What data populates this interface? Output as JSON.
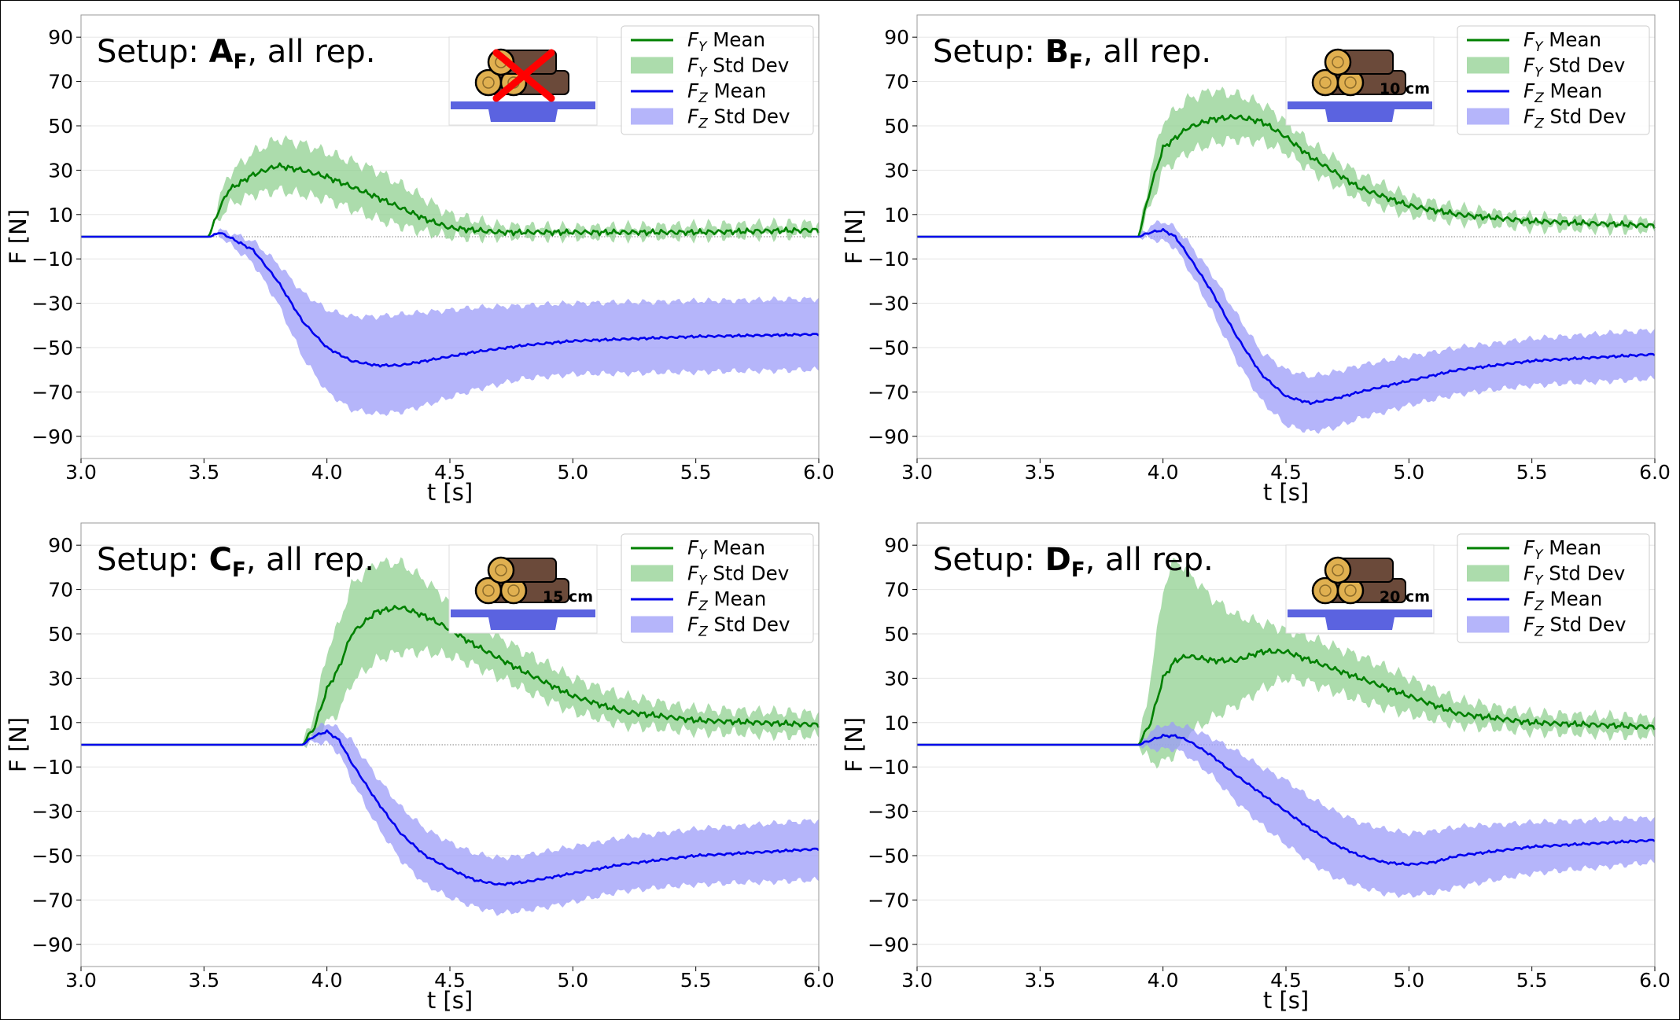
{
  "legend_labels": {
    "fy_mean": [
      "F",
      "Y",
      " Mean"
    ],
    "fy_std": [
      "F",
      "Y",
      " Std Dev"
    ],
    "fz_mean": [
      "F",
      "Z",
      " Mean"
    ],
    "fz_std": [
      "F",
      "Z",
      " Std Dev"
    ]
  },
  "colors": {
    "fy_line": "#008000",
    "fy_band": "#90d090",
    "fz_line": "#0000ee",
    "fz_band": "#9c9cf8",
    "sensor": "#5b63e0",
    "log_dark": "#6b4a3a",
    "log_end": "#e0b050",
    "cross": "#ff0000"
  },
  "chart_data": [
    {
      "type": "line",
      "title": {
        "prefix": "Setup: ",
        "letter": "A",
        "sub": "F",
        "suffix": ", all rep."
      },
      "xlabel": "t [s]",
      "ylabel": "F [N]",
      "xlim": [
        3.0,
        6.0
      ],
      "ylim": [
        -100,
        100
      ],
      "xticks": [
        "3.0",
        "3.5",
        "4.0",
        "4.5",
        "5.0",
        "5.5",
        "6.0"
      ],
      "yticks": [
        "90",
        "70",
        "50",
        "30",
        "10",
        "−10",
        "−30",
        "−50",
        "−70",
        "−90"
      ],
      "grid": "horizontal",
      "legend_position": "top-right",
      "thumbnail": {
        "label": "",
        "crossed": true
      },
      "series": [
        {
          "name": "F_Y Mean",
          "x": [
            3.0,
            3.52,
            3.56,
            3.6,
            3.7,
            3.8,
            3.9,
            4.0,
            4.2,
            4.4,
            4.5,
            4.7,
            5.0,
            5.5,
            6.0
          ],
          "y": [
            0,
            0,
            12,
            21,
            28,
            32,
            30,
            27,
            18,
            8,
            4,
            2,
            2,
            2,
            3
          ]
        },
        {
          "name": "F_Y Std Dev",
          "x": [
            3.0,
            3.52,
            3.56,
            3.6,
            3.7,
            3.8,
            3.9,
            4.0,
            4.2,
            4.4,
            4.5,
            4.7,
            5.0,
            5.5,
            6.0
          ],
          "upper": [
            0,
            0,
            16,
            28,
            38,
            44,
            42,
            38,
            30,
            17,
            10,
            5,
            4,
            5,
            6
          ],
          "lower": [
            0,
            0,
            8,
            14,
            19,
            21,
            19,
            17,
            8,
            2,
            0,
            0,
            0,
            0,
            1
          ]
        },
        {
          "name": "F_Z Mean",
          "x": [
            3.0,
            3.53,
            3.56,
            3.6,
            3.7,
            3.8,
            3.9,
            4.0,
            4.1,
            4.2,
            4.3,
            4.4,
            4.6,
            4.8,
            5.0,
            5.5,
            6.0
          ],
          "y": [
            0,
            0,
            2,
            0,
            -6,
            -20,
            -38,
            -50,
            -56,
            -58,
            -58,
            -56,
            -52,
            -49,
            -47,
            -45,
            -44
          ]
        },
        {
          "name": "F_Z Std Dev",
          "x": [
            3.0,
            3.53,
            3.56,
            3.6,
            3.7,
            3.8,
            3.9,
            4.0,
            4.1,
            4.2,
            4.3,
            4.4,
            4.6,
            4.8,
            5.0,
            5.5,
            6.0
          ],
          "upper": [
            0,
            0,
            3,
            2,
            -2,
            -12,
            -25,
            -33,
            -36,
            -36,
            -35,
            -34,
            -32,
            -31,
            -30,
            -29,
            -28
          ],
          "lower": [
            0,
            0,
            1,
            -3,
            -12,
            -30,
            -54,
            -70,
            -78,
            -80,
            -79,
            -76,
            -69,
            -64,
            -62,
            -61,
            -60
          ]
        }
      ]
    },
    {
      "type": "line",
      "title": {
        "prefix": "Setup: ",
        "letter": "B",
        "sub": "F",
        "suffix": ", all rep."
      },
      "xlabel": "t [s]",
      "ylabel": "F [N]",
      "xlim": [
        3.0,
        6.0
      ],
      "ylim": [
        -100,
        100
      ],
      "xticks": [
        "3.0",
        "3.5",
        "4.0",
        "4.5",
        "5.0",
        "5.5",
        "6.0"
      ],
      "yticks": [
        "90",
        "70",
        "50",
        "30",
        "10",
        "−10",
        "−30",
        "−50",
        "−70",
        "−90"
      ],
      "grid": "horizontal",
      "legend_position": "top-right",
      "thumbnail": {
        "label": "10 cm",
        "crossed": false
      },
      "series": [
        {
          "name": "F_Y Mean",
          "x": [
            3.0,
            3.9,
            3.95,
            4.0,
            4.1,
            4.2,
            4.3,
            4.4,
            4.5,
            4.6,
            4.8,
            5.0,
            5.2,
            5.5,
            6.0
          ],
          "y": [
            0,
            0,
            22,
            40,
            49,
            53,
            54,
            52,
            45,
            36,
            22,
            14,
            10,
            7,
            5
          ]
        },
        {
          "name": "F_Y Std Dev",
          "x": [
            3.0,
            3.9,
            3.95,
            4.0,
            4.1,
            4.2,
            4.3,
            4.4,
            4.5,
            4.6,
            4.8,
            5.0,
            5.2,
            5.5,
            6.0
          ],
          "upper": [
            0,
            0,
            30,
            52,
            62,
            66,
            64,
            60,
            52,
            42,
            28,
            18,
            13,
            9,
            7
          ],
          "lower": [
            0,
            0,
            14,
            30,
            38,
            42,
            44,
            43,
            38,
            30,
            17,
            10,
            7,
            4,
            3
          ]
        },
        {
          "name": "F_Z Mean",
          "x": [
            3.0,
            3.9,
            3.95,
            4.0,
            4.05,
            4.1,
            4.2,
            4.3,
            4.4,
            4.5,
            4.6,
            4.7,
            4.8,
            5.0,
            5.2,
            5.5,
            6.0
          ],
          "y": [
            0,
            0,
            2,
            3,
            0,
            -8,
            -25,
            -45,
            -62,
            -72,
            -75,
            -73,
            -70,
            -65,
            -60,
            -56,
            -53
          ]
        },
        {
          "name": "F_Z Std Dev",
          "x": [
            3.0,
            3.9,
            3.95,
            4.0,
            4.05,
            4.1,
            4.2,
            4.3,
            4.4,
            4.5,
            4.6,
            4.7,
            4.8,
            5.0,
            5.2,
            5.5,
            6.0
          ],
          "upper": [
            0,
            0,
            5,
            7,
            4,
            -2,
            -17,
            -35,
            -52,
            -60,
            -63,
            -61,
            -58,
            -54,
            -50,
            -46,
            -42
          ],
          "lower": [
            0,
            0,
            -1,
            -2,
            -5,
            -14,
            -34,
            -56,
            -74,
            -85,
            -88,
            -86,
            -82,
            -76,
            -71,
            -67,
            -64
          ]
        }
      ]
    },
    {
      "type": "line",
      "title": {
        "prefix": "Setup: ",
        "letter": "C",
        "sub": "F",
        "suffix": ", all rep."
      },
      "xlabel": "t [s]",
      "ylabel": "F [N]",
      "xlim": [
        3.0,
        6.0
      ],
      "ylim": [
        -100,
        100
      ],
      "xticks": [
        "3.0",
        "3.5",
        "4.0",
        "4.5",
        "5.0",
        "5.5",
        "6.0"
      ],
      "yticks": [
        "90",
        "70",
        "50",
        "30",
        "10",
        "−10",
        "−30",
        "−50",
        "−70",
        "−90"
      ],
      "grid": "horizontal",
      "legend_position": "top-right",
      "thumbnail": {
        "label": "15 cm",
        "crossed": false
      },
      "series": [
        {
          "name": "F_Y Mean",
          "x": [
            3.0,
            3.9,
            3.95,
            4.0,
            4.05,
            4.1,
            4.2,
            4.3,
            4.4,
            4.5,
            4.6,
            4.8,
            5.0,
            5.2,
            5.5,
            6.0
          ],
          "y": [
            0,
            0,
            8,
            25,
            35,
            50,
            60,
            62,
            58,
            52,
            45,
            33,
            22,
            15,
            11,
            9
          ]
        },
        {
          "name": "F_Y Std Dev",
          "x": [
            3.0,
            3.9,
            3.95,
            4.0,
            4.05,
            4.1,
            4.2,
            4.3,
            4.4,
            4.5,
            4.6,
            4.8,
            5.0,
            5.2,
            5.5,
            6.0
          ],
          "upper": [
            0,
            0,
            15,
            42,
            55,
            72,
            82,
            82,
            74,
            64,
            55,
            42,
            30,
            22,
            16,
            14
          ],
          "lower": [
            0,
            0,
            2,
            10,
            15,
            28,
            38,
            42,
            42,
            40,
            36,
            25,
            15,
            9,
            6,
            4
          ]
        },
        {
          "name": "F_Z Mean",
          "x": [
            3.0,
            3.9,
            3.95,
            4.0,
            4.05,
            4.1,
            4.2,
            4.3,
            4.4,
            4.5,
            4.6,
            4.7,
            4.8,
            5.0,
            5.2,
            5.5,
            6.0
          ],
          "y": [
            0,
            0,
            4,
            6,
            2,
            -8,
            -25,
            -40,
            -50,
            -56,
            -61,
            -63,
            -62,
            -58,
            -54,
            -50,
            -47
          ]
        },
        {
          "name": "F_Z Std Dev",
          "x": [
            3.0,
            3.9,
            3.95,
            4.0,
            4.05,
            4.1,
            4.2,
            4.3,
            4.4,
            4.5,
            4.6,
            4.7,
            4.8,
            5.0,
            5.2,
            5.5,
            6.0
          ],
          "upper": [
            0,
            0,
            7,
            10,
            7,
            2,
            -14,
            -28,
            -38,
            -44,
            -49,
            -51,
            -50,
            -46,
            -42,
            -38,
            -34
          ],
          "lower": [
            0,
            0,
            1,
            1,
            -4,
            -16,
            -36,
            -52,
            -63,
            -69,
            -73,
            -76,
            -75,
            -71,
            -66,
            -63,
            -61
          ]
        }
      ]
    },
    {
      "type": "line",
      "title": {
        "prefix": "Setup: ",
        "letter": "D",
        "sub": "F",
        "suffix": ", all rep."
      },
      "xlabel": "t [s]",
      "ylabel": "F [N]",
      "xlim": [
        3.0,
        6.0
      ],
      "ylim": [
        -100,
        100
      ],
      "xticks": [
        "3.0",
        "3.5",
        "4.0",
        "4.5",
        "5.0",
        "5.5",
        "6.0"
      ],
      "yticks": [
        "90",
        "70",
        "50",
        "30",
        "10",
        "−10",
        "−30",
        "−50",
        "−70",
        "−90"
      ],
      "grid": "horizontal",
      "legend_position": "top-right",
      "thumbnail": {
        "label": "20 cm",
        "crossed": false
      },
      "series": [
        {
          "name": "F_Y Mean",
          "x": [
            3.0,
            3.9,
            3.95,
            4.0,
            4.05,
            4.1,
            4.2,
            4.3,
            4.4,
            4.5,
            4.6,
            4.7,
            4.8,
            5.0,
            5.2,
            5.5,
            6.0
          ],
          "y": [
            0,
            0,
            10,
            30,
            38,
            40,
            38,
            38,
            42,
            42,
            38,
            34,
            30,
            22,
            14,
            10,
            8
          ]
        },
        {
          "name": "F_Y Std Dev",
          "x": [
            3.0,
            3.9,
            3.95,
            4.0,
            4.05,
            4.1,
            4.2,
            4.3,
            4.4,
            4.5,
            4.6,
            4.7,
            4.8,
            5.0,
            5.2,
            5.5,
            6.0
          ],
          "upper": [
            0,
            0,
            30,
            70,
            84,
            78,
            66,
            58,
            55,
            52,
            48,
            44,
            40,
            30,
            20,
            14,
            12
          ],
          "lower": [
            0,
            0,
            -8,
            -8,
            -4,
            5,
            12,
            18,
            25,
            30,
            28,
            24,
            20,
            14,
            9,
            6,
            4
          ]
        },
        {
          "name": "F_Z Mean",
          "x": [
            3.0,
            3.9,
            3.95,
            4.0,
            4.05,
            4.1,
            4.2,
            4.3,
            4.4,
            4.5,
            4.6,
            4.7,
            4.8,
            4.9,
            5.0,
            5.1,
            5.2,
            5.5,
            6.0
          ],
          "y": [
            0,
            0,
            2,
            4,
            4,
            2,
            -5,
            -14,
            -22,
            -30,
            -38,
            -45,
            -50,
            -53,
            -54,
            -53,
            -50,
            -46,
            -43
          ]
        },
        {
          "name": "F_Z Std Dev",
          "x": [
            3.0,
            3.9,
            3.95,
            4.0,
            4.05,
            4.1,
            4.2,
            4.3,
            4.4,
            4.5,
            4.6,
            4.7,
            4.8,
            4.9,
            5.0,
            5.1,
            5.2,
            5.5,
            6.0
          ],
          "upper": [
            0,
            0,
            6,
            9,
            9,
            8,
            3,
            -3,
            -10,
            -16,
            -24,
            -30,
            -35,
            -38,
            -40,
            -39,
            -37,
            -35,
            -33
          ],
          "lower": [
            0,
            0,
            -2,
            -2,
            -2,
            -5,
            -14,
            -26,
            -36,
            -45,
            -53,
            -60,
            -64,
            -67,
            -68,
            -67,
            -64,
            -58,
            -53
          ]
        }
      ]
    }
  ]
}
